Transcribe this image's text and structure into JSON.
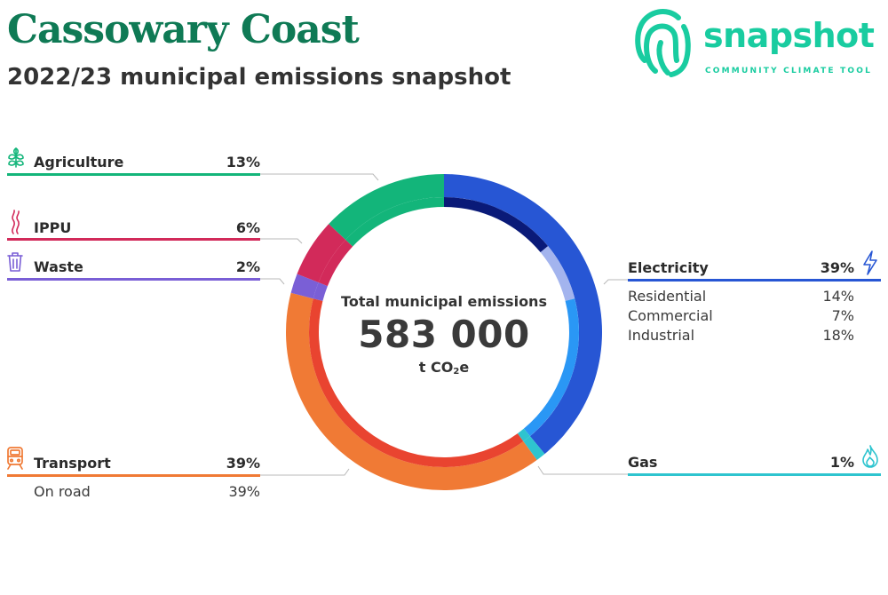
{
  "header": {
    "title": "Cassowary Coast",
    "subtitle": "2022/23 municipal emissions snapshot"
  },
  "logo": {
    "word": "snapshot",
    "tagline": "COMMUNITY CLIMATE TOOL",
    "color": "#19cca0"
  },
  "center": {
    "title": "Total municipal emissions",
    "value": "583 000",
    "unit_prefix": "t CO",
    "unit_sub": "2",
    "unit_suffix": "e"
  },
  "chart_data": {
    "type": "pie",
    "style": "donut",
    "start_angle_deg": 0,
    "direction": "clockwise",
    "total": "583 000 t CO2e",
    "slices": [
      {
        "name": "Electricity",
        "value": 39,
        "color": "#2756d4",
        "inner_color": "#0a1a78",
        "sub": [
          {
            "name": "Residential",
            "value": 14
          },
          {
            "name": "Commercial",
            "value": 7
          },
          {
            "name": "Industrial",
            "value": 18
          }
        ],
        "sub_colors": [
          "#0a1a78",
          "#a3b4ee",
          "#2a97f5"
        ]
      },
      {
        "name": "Gas",
        "value": 1,
        "color": "#2ec4cf"
      },
      {
        "name": "Transport",
        "value": 39,
        "color": "#f07a35",
        "inner_color": "#e94430",
        "sub": [
          {
            "name": "On road",
            "value": 39
          }
        ]
      },
      {
        "name": "Waste",
        "value": 2,
        "color": "#7a5fd6"
      },
      {
        "name": "IPPU",
        "value": 6,
        "color": "#d22a5a"
      },
      {
        "name": "Agriculture",
        "value": 13,
        "color": "#13b57a"
      }
    ]
  },
  "labels": {
    "agriculture": {
      "name": "Agriculture",
      "pct": "13%"
    },
    "ippu": {
      "name": "IPPU",
      "pct": "6%"
    },
    "waste": {
      "name": "Waste",
      "pct": "2%"
    },
    "transport": {
      "name": "Transport",
      "pct": "39%",
      "sub_name": "On road",
      "sub_pct": "39%"
    },
    "electricity": {
      "name": "Electricity",
      "pct": "39%",
      "subs": [
        {
          "name": "Residential",
          "pct": "14%"
        },
        {
          "name": "Commercial",
          "pct": "7%"
        },
        {
          "name": "Industrial",
          "pct": "18%"
        }
      ]
    },
    "gas": {
      "name": "Gas",
      "pct": "1%"
    }
  },
  "icons": {
    "agriculture": "wheat-icon",
    "ippu": "smoke-icon",
    "waste": "trash-bin-icon",
    "transport": "train-icon",
    "electricity": "lightning-icon",
    "gas": "flame-icon"
  }
}
